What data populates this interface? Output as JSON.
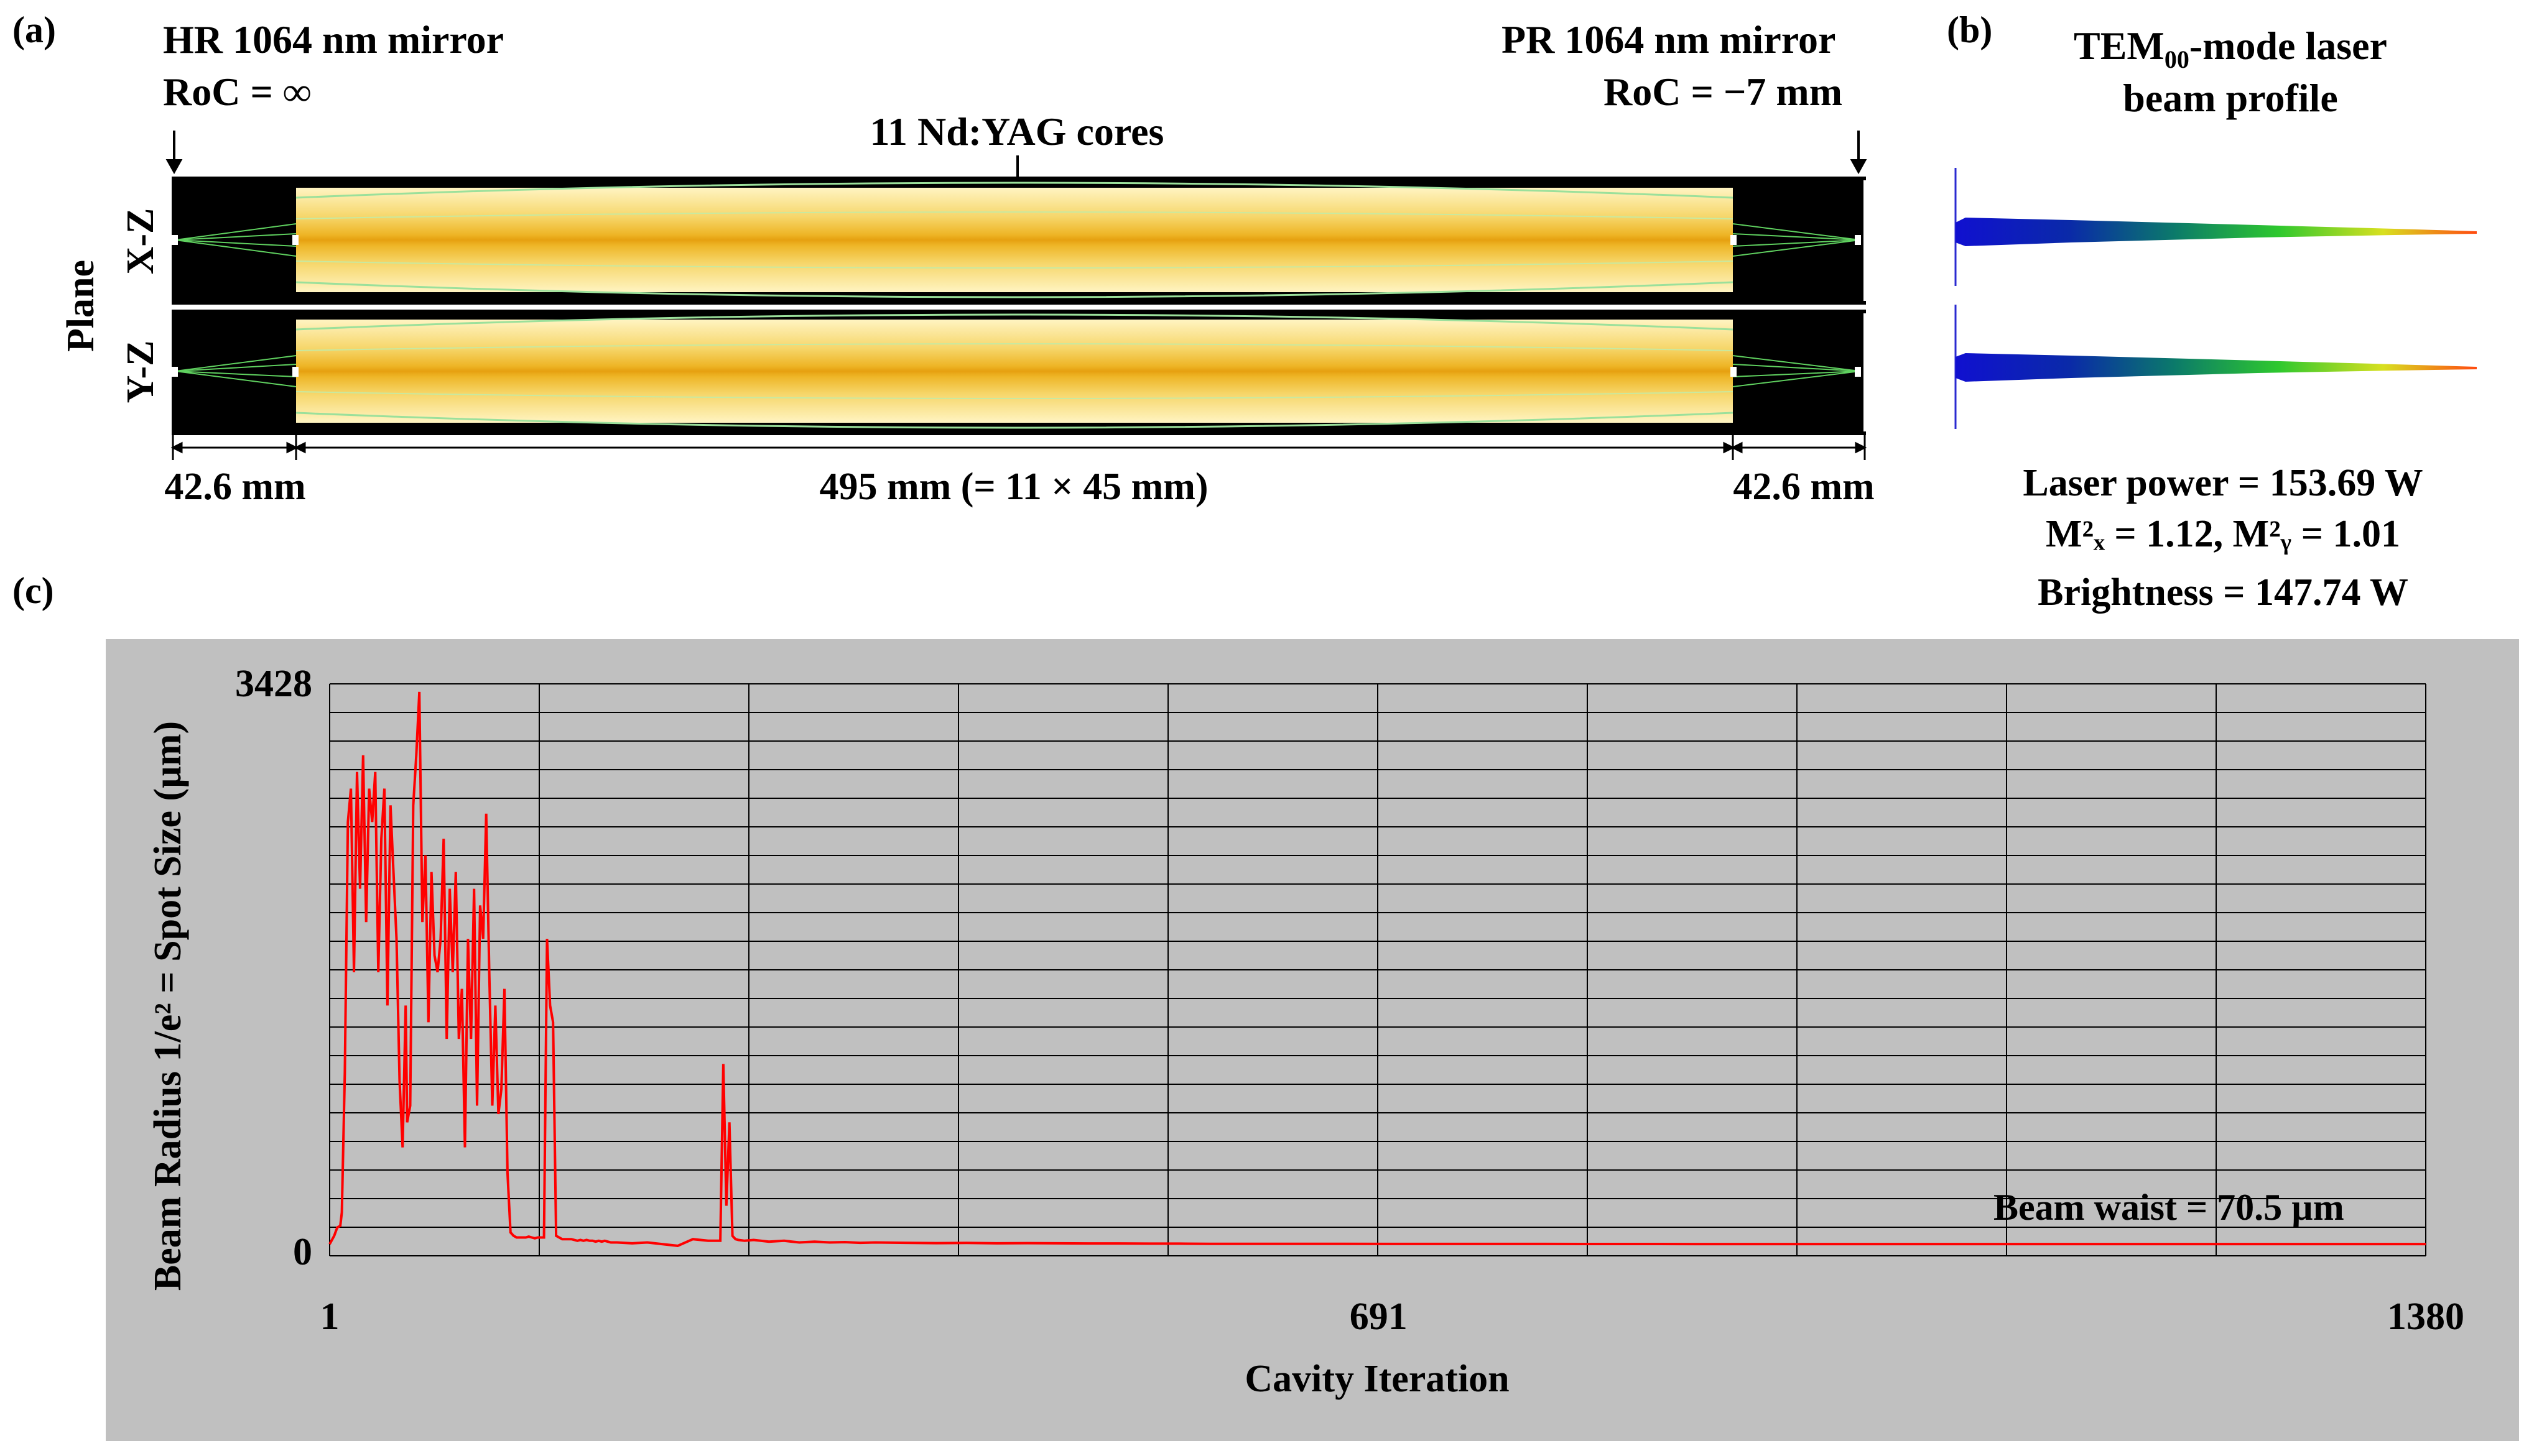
{
  "panels": {
    "a": "(a)",
    "b": "(b)",
    "c": "(c)"
  },
  "resonator": {
    "left_mirror": {
      "name": "HR 1064 nm mirror",
      "roc": "RoC = ∞"
    },
    "right_mirror": {
      "name": "PR 1064 nm mirror",
      "roc": "RoC = −7 mm"
    },
    "cores_label": "11 Nd:YAG cores",
    "plane_label": "Plane",
    "xz_label": "X-Z",
    "yz_label": "Y-Z",
    "dim_left": "42.6 mm",
    "dim_center": "495 mm (= 11 × 45 mm)",
    "dim_right": "42.6 mm"
  },
  "beam_profile": {
    "title_main": "TEM",
    "title_sub": "00",
    "title_rest": "-mode laser",
    "title_line2": "beam profile",
    "power": "Laser power = 153.69 W",
    "m2": "M²ₓ = 1.12, M²ᵧ = 1.01",
    "brightness": "Brightness = 147.74 W"
  },
  "chart_data": {
    "type": "line",
    "xlabel": "Cavity Iteration",
    "ylabel": "Beam Radius 1/e² = Spot Size (µm)",
    "x_ticks": [
      "1",
      "691",
      "1380"
    ],
    "y_ticks": [
      "0",
      "3428"
    ],
    "xlim": [
      1,
      1380
    ],
    "ylim": [
      0,
      3428
    ],
    "grid": true,
    "annotation": "Beam waist = 70.5 µm",
    "line_color": "#ff0000",
    "series": [
      {
        "x": [
          1,
          4,
          6,
          8,
          9,
          11,
          13,
          15,
          17,
          19,
          21,
          23,
          25,
          27,
          29,
          31,
          33,
          35,
          37,
          39,
          41,
          43,
          45,
          47,
          49,
          51,
          52,
          54,
          56,
          58,
          60,
          62,
          64,
          66,
          68,
          70,
          72,
          74,
          76,
          78,
          80,
          82,
          84,
          86,
          88,
          90,
          92,
          94,
          96,
          98,
          100,
          102,
          104,
          106,
          108,
          110,
          112,
          114,
          116,
          118,
          120,
          122,
          124,
          126,
          128,
          130,
          132,
          134,
          136,
          138,
          140,
          142,
          144,
          146,
          148,
          150,
          152,
          154,
          156,
          158,
          160,
          162,
          164,
          166,
          168,
          170,
          172,
          174,
          176,
          178,
          180,
          182,
          184,
          186,
          190,
          200,
          210,
          220,
          230,
          240,
          250,
          258,
          260,
          262,
          264,
          266,
          268,
          270,
          274,
          280,
          290,
          300,
          310,
          320,
          330,
          340,
          350,
          360,
          380,
          400,
          420,
          440,
          460,
          480,
          500,
          520,
          540,
          560,
          580,
          600,
          640,
          700,
          800,
          900,
          1000,
          1100,
          1200,
          1300,
          1380
        ],
        "y": [
          70,
          120,
          170,
          180,
          260,
          1100,
          2600,
          2800,
          1700,
          2900,
          2200,
          3000,
          2000,
          2800,
          2600,
          2900,
          1700,
          2500,
          2800,
          1500,
          2700,
          2300,
          1900,
          1050,
          650,
          1500,
          800,
          900,
          2700,
          3000,
          3380,
          2000,
          2400,
          1400,
          2300,
          1800,
          1700,
          1900,
          2500,
          1300,
          2200,
          1700,
          2300,
          1300,
          1600,
          650,
          1900,
          1300,
          2200,
          900,
          2100,
          1900,
          2650,
          1700,
          900,
          1500,
          850,
          1000,
          1600,
          500,
          140,
          120,
          110,
          110,
          110,
          110,
          115,
          110,
          105,
          110,
          110,
          110,
          1900,
          1500,
          1400,
          120,
          110,
          100,
          100,
          100,
          100,
          95,
          90,
          95,
          90,
          95,
          90,
          90,
          85,
          90,
          85,
          90,
          85,
          80,
          80,
          75,
          80,
          70,
          60,
          100,
          90,
          90,
          1150,
          300,
          800,
          120,
          100,
          95,
          90,
          95,
          85,
          90,
          80,
          85,
          80,
          82,
          78,
          80,
          78,
          76,
          77,
          75,
          76,
          75,
          74,
          74,
          73,
          73,
          72,
          72,
          72,
          71,
          71,
          70.5,
          70.5,
          70.5,
          70.5,
          70.5,
          70.5
        ]
      }
    ]
  }
}
